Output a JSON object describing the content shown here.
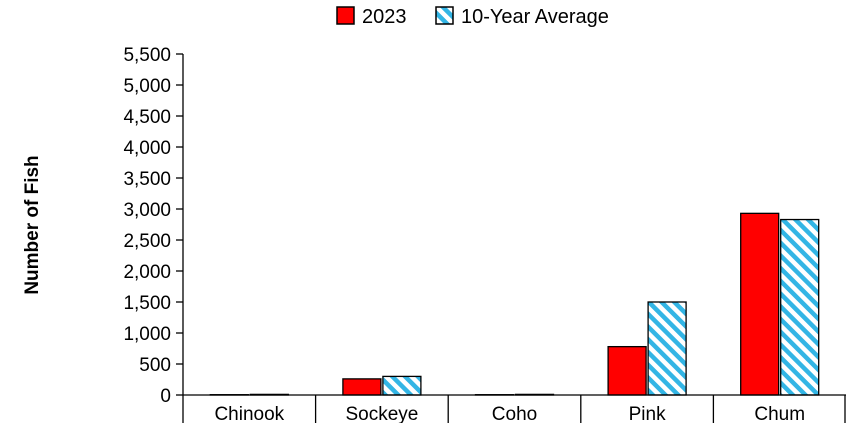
{
  "chart_data": {
    "type": "bar",
    "title": "",
    "xlabel": "",
    "ylabel": "Number of Fish",
    "categories": [
      "Chinook",
      "Sockeye",
      "Coho",
      "Pink",
      "Chum"
    ],
    "series": [
      {
        "name": "2023",
        "values": [
          5,
          260,
          5,
          780,
          2930
        ],
        "color": "#ff0000",
        "pattern": "solid"
      },
      {
        "name": "10-Year Average",
        "values": [
          10,
          300,
          10,
          1500,
          2830
        ],
        "color": "#33b5e5",
        "pattern": "diagonal-stripes"
      }
    ],
    "ylim": [
      0,
      5500
    ],
    "y_ticks": [
      "0",
      "500",
      "1,000",
      "1,500",
      "2,000",
      "2,500",
      "3,000",
      "3,500",
      "4,000",
      "4,500",
      "5,000",
      "5,500"
    ],
    "grid": false,
    "legend_position": "top-center"
  }
}
